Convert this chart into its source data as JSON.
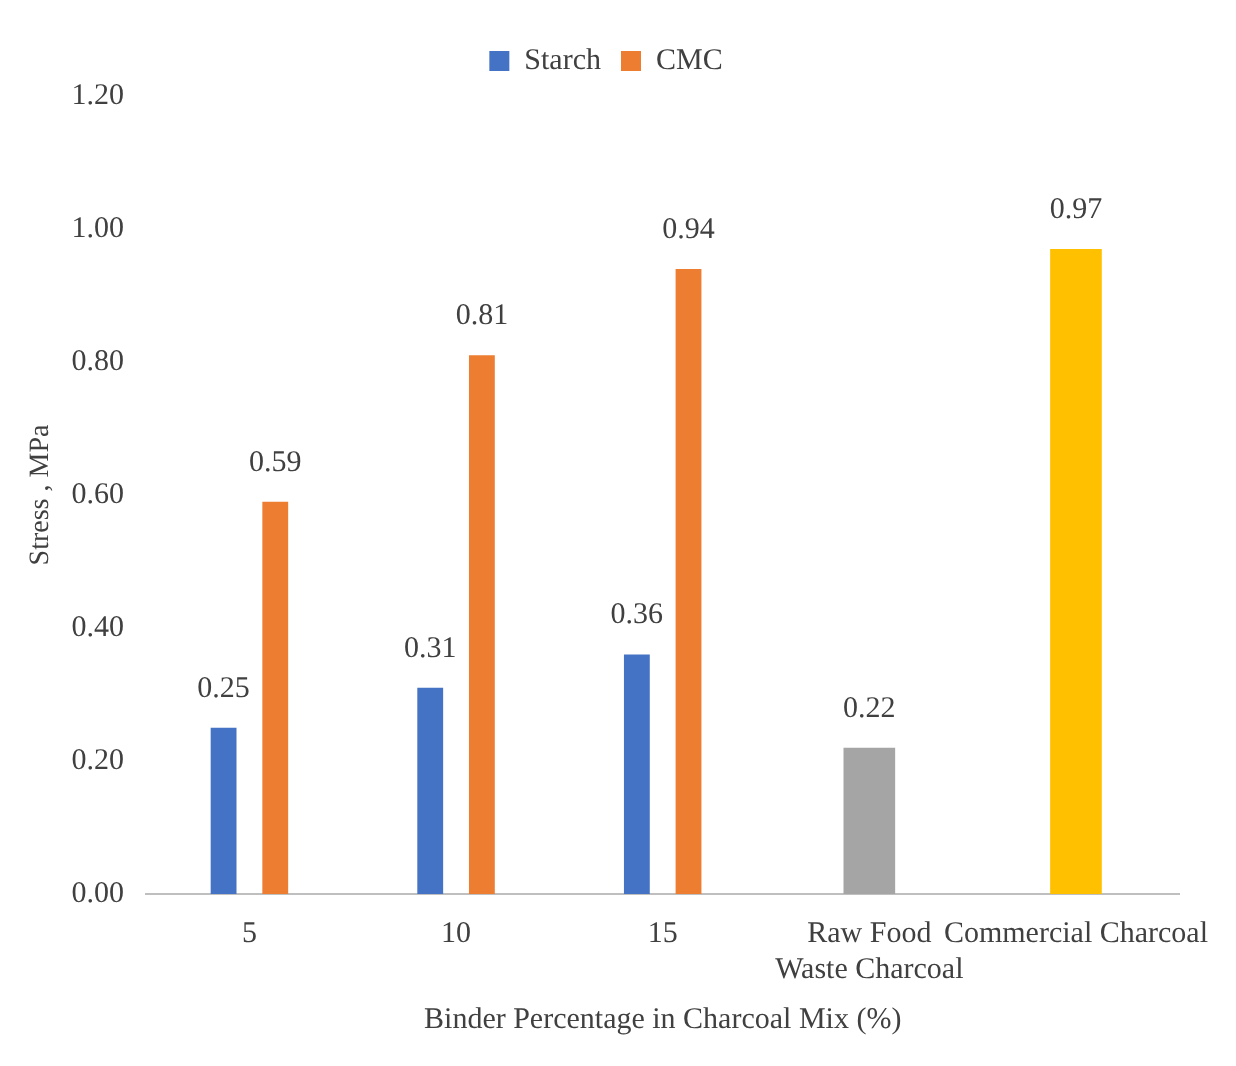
{
  "chart_data": {
    "type": "bar",
    "ylabel": "Stress , MPa",
    "xlabel": "Binder Percentage in Charcoal Mix (%)",
    "categories": [
      "5",
      "10",
      "15",
      "Raw Food Waste Charcoal",
      "Commercial Charcoal"
    ],
    "series": [
      {
        "name": "Starch",
        "color": "#4472c4",
        "values": [
          0.25,
          0.31,
          0.36,
          null,
          null
        ]
      },
      {
        "name": "CMC",
        "color": "#ed7d31",
        "values": [
          0.59,
          0.81,
          0.94,
          null,
          null
        ]
      },
      {
        "color": "#a5a5a5",
        "values": [
          null,
          null,
          null,
          0.22,
          null
        ]
      },
      {
        "color": "#ffc000",
        "values": [
          null,
          null,
          null,
          null,
          0.97
        ]
      }
    ],
    "ylim": [
      0,
      1.2
    ],
    "yticks": [
      {
        "value": 0,
        "label": "0.00"
      },
      {
        "value": 0.2,
        "label": "0.20"
      },
      {
        "value": 0.4,
        "label": "0.40"
      },
      {
        "value": 0.6,
        "label": "0.60"
      },
      {
        "value": 0.8,
        "label": "0.80"
      },
      {
        "value": 1,
        "label": "1.00"
      },
      {
        "value": 1.2,
        "label": "1.20"
      }
    ],
    "grid": false,
    "legend": "top",
    "data_labels": true
  }
}
